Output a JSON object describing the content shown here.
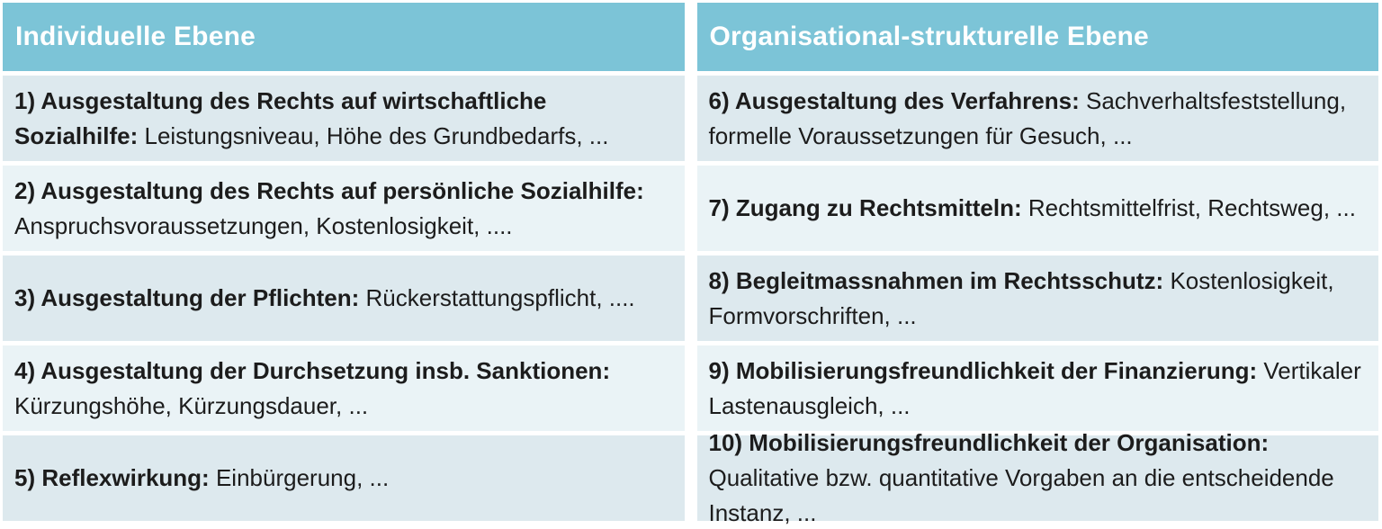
{
  "colors": {
    "header_bg": "#7cc4d7",
    "row_odd": "#dde9ee",
    "row_even": "#eaf3f6",
    "frame_bg": "#ffffff",
    "header_text": "#ffffff",
    "body_text": "#1c1c1c"
  },
  "table": {
    "columns": [
      {
        "header": "Individuelle Ebene",
        "rows": [
          {
            "lead": "1) Ausgestaltung des Rechts auf wirtschaftliche Sozialhilfe:",
            "rest": "Leistungsniveau, Höhe des Grundbedarfs, ..."
          },
          {
            "lead": "2) Ausgestaltung des Rechts auf persönliche Sozialhilfe:",
            "rest": "Anspruchsvoraussetzungen, Kostenlosigkeit, ...."
          },
          {
            "lead": "3) Ausgestaltung der Pflichten:",
            "rest": "Rückerstattungspflicht, ...."
          },
          {
            "lead": "4) Ausgestaltung der Durchsetzung insb. Sanktionen:",
            "rest": "Kürzungshöhe, Kürzungsdauer, ..."
          },
          {
            "lead": "5) Reflexwirkung:",
            "rest": "Einbürgerung, ..."
          }
        ]
      },
      {
        "header": "Organisational-strukturelle Ebene",
        "rows": [
          {
            "lead": "6) Ausgestaltung des Verfahrens:",
            "rest": "Sachverhaltsfeststellung, formelle Voraussetzungen für Gesuch, ..."
          },
          {
            "lead": "7) Zugang zu Rechtsmitteln:",
            "rest": "Rechtsmittelfrist, Rechtsweg, ..."
          },
          {
            "lead": "8) Begleitmassnahmen im Rechtsschutz:",
            "rest": "Kostenlosigkeit, Formvorschriften, ..."
          },
          {
            "lead": "9) Mobilisierungsfreundlichkeit der Finanzierung:",
            "rest": "Vertikaler Lastenausgleich, ..."
          },
          {
            "lead": "10) Mobilisierungsfreundlichkeit der Organisation:",
            "rest": "Qualitative bzw. quantitative Vorgaben an die entscheidende Instanz, ..."
          }
        ]
      }
    ]
  }
}
